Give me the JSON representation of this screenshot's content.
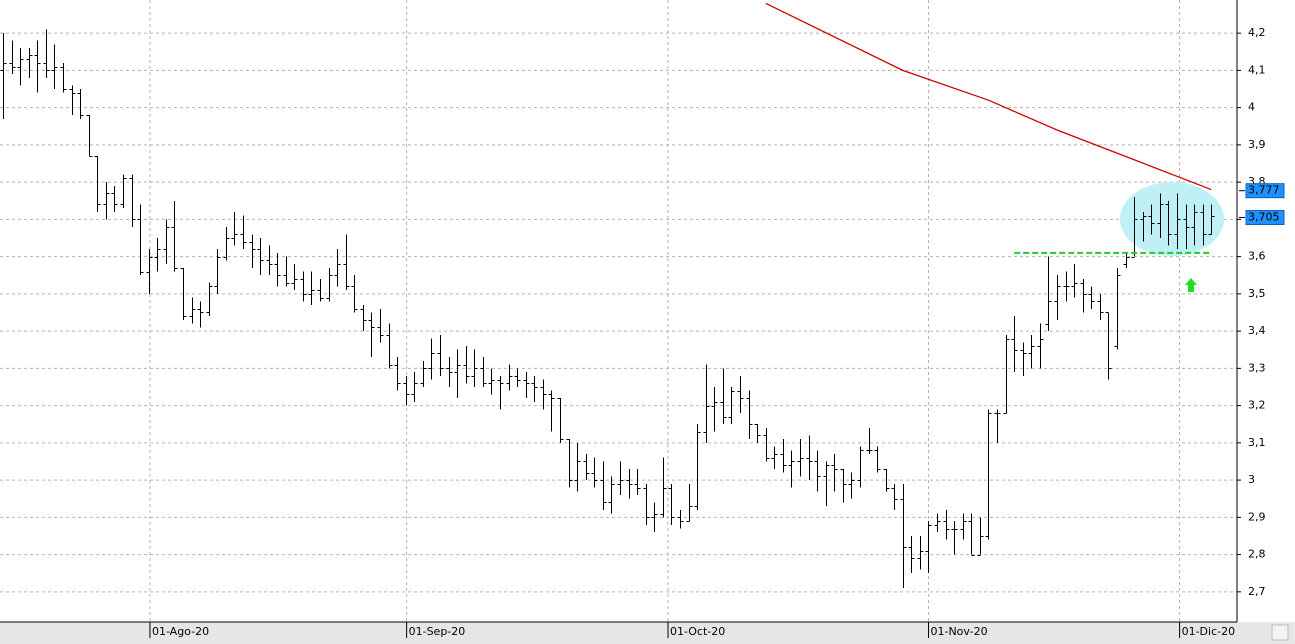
{
  "chart_data": {
    "type": "ohlc",
    "ohlc": [
      [
        4.1,
        4.2,
        3.97,
        4.12
      ],
      [
        4.12,
        4.18,
        4.09,
        4.11
      ],
      [
        4.11,
        4.16,
        4.06,
        4.13
      ],
      [
        4.13,
        4.16,
        4.08,
        4.14
      ],
      [
        4.14,
        4.18,
        4.04,
        4.12
      ],
      [
        4.12,
        4.21,
        4.08,
        4.1
      ],
      [
        4.1,
        4.17,
        4.05,
        4.11
      ],
      [
        4.11,
        4.12,
        4.04,
        4.05
      ],
      [
        4.05,
        4.06,
        3.98,
        4.04
      ],
      [
        4.04,
        4.05,
        3.97,
        3.98
      ],
      [
        3.98,
        3.98,
        3.87,
        3.87
      ],
      [
        3.87,
        3.87,
        3.72,
        3.74
      ],
      [
        3.74,
        3.8,
        3.7,
        3.77
      ],
      [
        3.77,
        3.79,
        3.72,
        3.74
      ],
      [
        3.74,
        3.82,
        3.73,
        3.81
      ],
      [
        3.81,
        3.82,
        3.68,
        3.7
      ],
      [
        3.7,
        3.74,
        3.55,
        3.56
      ],
      [
        3.56,
        3.62,
        3.5,
        3.6
      ],
      [
        3.6,
        3.65,
        3.56,
        3.62
      ],
      [
        3.62,
        3.7,
        3.58,
        3.68
      ],
      [
        3.68,
        3.75,
        3.56,
        3.57
      ],
      [
        3.57,
        3.57,
        3.43,
        3.44
      ],
      [
        3.44,
        3.49,
        3.42,
        3.46
      ],
      [
        3.46,
        3.48,
        3.41,
        3.45
      ],
      [
        3.45,
        3.53,
        3.44,
        3.52
      ],
      [
        3.52,
        3.62,
        3.5,
        3.6
      ],
      [
        3.6,
        3.68,
        3.59,
        3.65
      ],
      [
        3.65,
        3.72,
        3.63,
        3.66
      ],
      [
        3.66,
        3.71,
        3.62,
        3.64
      ],
      [
        3.64,
        3.66,
        3.57,
        3.62
      ],
      [
        3.62,
        3.65,
        3.55,
        3.59
      ],
      [
        3.59,
        3.63,
        3.55,
        3.58
      ],
      [
        3.58,
        3.61,
        3.52,
        3.55
      ],
      [
        3.55,
        3.6,
        3.52,
        3.53
      ],
      [
        3.53,
        3.58,
        3.51,
        3.54
      ],
      [
        3.54,
        3.56,
        3.48,
        3.5
      ],
      [
        3.5,
        3.56,
        3.47,
        3.51
      ],
      [
        3.51,
        3.54,
        3.48,
        3.49
      ],
      [
        3.49,
        3.57,
        3.48,
        3.55
      ],
      [
        3.55,
        3.62,
        3.52,
        3.58
      ],
      [
        3.58,
        3.66,
        3.51,
        3.52
      ],
      [
        3.52,
        3.55,
        3.45,
        3.46
      ],
      [
        3.46,
        3.47,
        3.4,
        3.43
      ],
      [
        3.43,
        3.45,
        3.33,
        3.41
      ],
      [
        3.41,
        3.46,
        3.37,
        3.39
      ],
      [
        3.39,
        3.42,
        3.3,
        3.31
      ],
      [
        3.31,
        3.33,
        3.24,
        3.26
      ],
      [
        3.26,
        3.28,
        3.2,
        3.23
      ],
      [
        3.23,
        3.29,
        3.21,
        3.26
      ],
      [
        3.26,
        3.32,
        3.25,
        3.3
      ],
      [
        3.3,
        3.38,
        3.27,
        3.34
      ],
      [
        3.34,
        3.39,
        3.28,
        3.3
      ],
      [
        3.3,
        3.33,
        3.25,
        3.29
      ],
      [
        3.29,
        3.35,
        3.22,
        3.31
      ],
      [
        3.31,
        3.36,
        3.26,
        3.28
      ],
      [
        3.28,
        3.35,
        3.25,
        3.3
      ],
      [
        3.3,
        3.33,
        3.25,
        3.26
      ],
      [
        3.26,
        3.3,
        3.23,
        3.27
      ],
      [
        3.27,
        3.28,
        3.19,
        3.26
      ],
      [
        3.26,
        3.31,
        3.24,
        3.28
      ],
      [
        3.28,
        3.3,
        3.25,
        3.27
      ],
      [
        3.27,
        3.29,
        3.22,
        3.26
      ],
      [
        3.26,
        3.28,
        3.21,
        3.25
      ],
      [
        3.25,
        3.27,
        3.19,
        3.23
      ],
      [
        3.23,
        3.24,
        3.13,
        3.22
      ],
      [
        3.22,
        3.22,
        3.1,
        3.11
      ],
      [
        3.11,
        3.11,
        2.98,
        3.0
      ],
      [
        3.0,
        3.1,
        2.97,
        3.05
      ],
      [
        3.05,
        3.07,
        3.0,
        3.02
      ],
      [
        3.02,
        3.06,
        2.98,
        3.0
      ],
      [
        3.0,
        3.05,
        2.92,
        2.94
      ],
      [
        2.94,
        3.01,
        2.91,
        2.99
      ],
      [
        2.99,
        3.05,
        2.96,
        3.0
      ],
      [
        3.0,
        3.03,
        2.95,
        2.99
      ],
      [
        2.99,
        3.03,
        2.96,
        2.98
      ],
      [
        2.98,
        2.99,
        2.88,
        2.9
      ],
      [
        2.9,
        2.94,
        2.86,
        2.91
      ],
      [
        2.91,
        3.06,
        2.9,
        2.98
      ],
      [
        2.98,
        2.99,
        2.88,
        2.9
      ],
      [
        2.9,
        2.92,
        2.87,
        2.89
      ],
      [
        2.89,
        2.99,
        2.89,
        2.93
      ],
      [
        2.93,
        3.15,
        2.92,
        3.13
      ],
      [
        3.13,
        3.31,
        3.1,
        3.2
      ],
      [
        3.2,
        3.25,
        3.13,
        3.21
      ],
      [
        3.21,
        3.3,
        3.15,
        3.17
      ],
      [
        3.17,
        3.25,
        3.15,
        3.24
      ],
      [
        3.24,
        3.28,
        3.18,
        3.22
      ],
      [
        3.22,
        3.24,
        3.11,
        3.15
      ],
      [
        3.15,
        3.15,
        3.1,
        3.12
      ],
      [
        3.12,
        3.14,
        3.05,
        3.06
      ],
      [
        3.06,
        3.09,
        3.03,
        3.07
      ],
      [
        3.07,
        3.11,
        3.02,
        3.04
      ],
      [
        3.04,
        3.08,
        2.98,
        3.05
      ],
      [
        3.05,
        3.11,
        3.01,
        3.06
      ],
      [
        3.06,
        3.12,
        3.0,
        3.05
      ],
      [
        3.05,
        3.08,
        2.97,
        3.01
      ],
      [
        3.01,
        3.05,
        2.93,
        3.04
      ],
      [
        3.04,
        3.07,
        2.97,
        3.03
      ],
      [
        3.03,
        3.03,
        2.94,
        2.99
      ],
      [
        2.99,
        3.02,
        2.95,
        3.0
      ],
      [
        3.0,
        3.09,
        2.98,
        3.08
      ],
      [
        3.08,
        3.14,
        3.07,
        3.08
      ],
      [
        3.08,
        3.09,
        3.02,
        3.03
      ],
      [
        3.03,
        3.03,
        2.97,
        2.98
      ],
      [
        2.98,
        2.99,
        2.92,
        2.95
      ],
      [
        2.95,
        2.99,
        2.71,
        2.82
      ],
      [
        2.82,
        2.85,
        2.75,
        2.79
      ],
      [
        2.79,
        2.85,
        2.76,
        2.81
      ],
      [
        2.81,
        2.89,
        2.75,
        2.88
      ],
      [
        2.88,
        2.91,
        2.86,
        2.89
      ],
      [
        2.89,
        2.92,
        2.84,
        2.87
      ],
      [
        2.87,
        2.89,
        2.8,
        2.87
      ],
      [
        2.87,
        2.91,
        2.84,
        2.89
      ],
      [
        2.89,
        2.91,
        2.8,
        2.8
      ],
      [
        2.8,
        2.9,
        2.8,
        2.85
      ],
      [
        2.85,
        3.19,
        2.84,
        3.18
      ],
      [
        3.18,
        3.19,
        3.1,
        3.18
      ],
      [
        3.18,
        3.39,
        3.18,
        3.38
      ],
      [
        3.38,
        3.44,
        3.29,
        3.35
      ],
      [
        3.35,
        3.37,
        3.28,
        3.34
      ],
      [
        3.34,
        3.39,
        3.3,
        3.36
      ],
      [
        3.36,
        3.42,
        3.3,
        3.38
      ],
      [
        3.42,
        3.6,
        3.4,
        3.48
      ],
      [
        3.48,
        3.55,
        3.43,
        3.52
      ],
      [
        3.52,
        3.56,
        3.48,
        3.52
      ],
      [
        3.52,
        3.58,
        3.49,
        3.53
      ],
      [
        3.53,
        3.54,
        3.45,
        3.5
      ],
      [
        3.5,
        3.52,
        3.46,
        3.48
      ],
      [
        3.48,
        3.5,
        3.43,
        3.45
      ],
      [
        3.45,
        3.45,
        3.27,
        3.3
      ],
      [
        3.36,
        3.57,
        3.35,
        3.55
      ],
      [
        3.58,
        3.61,
        3.57,
        3.6
      ],
      [
        3.6,
        3.76,
        3.6,
        3.7
      ],
      [
        3.7,
        3.72,
        3.64,
        3.71
      ],
      [
        3.71,
        3.74,
        3.66,
        3.69
      ],
      [
        3.69,
        3.77,
        3.65,
        3.74
      ],
      [
        3.74,
        3.75,
        3.63,
        3.66
      ],
      [
        3.66,
        3.77,
        3.62,
        3.7
      ],
      [
        3.7,
        3.74,
        3.62,
        3.68
      ],
      [
        3.68,
        3.74,
        3.63,
        3.72
      ],
      [
        3.72,
        3.74,
        3.63,
        3.66
      ],
      [
        3.66,
        3.74,
        3.66,
        3.71
      ]
    ],
    "moving_average": {
      "color": "#d00000",
      "x": [
        89,
        105,
        115,
        123,
        132,
        141
      ],
      "values": [
        4.28,
        4.1,
        4.02,
        3.94,
        3.86,
        3.78
      ]
    },
    "support": {
      "color": "#22cc22",
      "x": [
        118,
        141
      ],
      "values": [
        3.61,
        3.61
      ]
    },
    "price_labels": [
      {
        "value": 3.777,
        "label": "3,777"
      },
      {
        "value": 3.705,
        "label": "3,705"
      }
    ],
    "xlim": [
      -0.35,
      144
    ],
    "xticks": [
      {
        "value": 17.15,
        "label": "01-Ago-20"
      },
      {
        "value": 47.1,
        "label": "01-Sep-20"
      },
      {
        "value": 77.6,
        "label": "01-Oct-20"
      },
      {
        "value": 108,
        "label": "01-Nov-20"
      },
      {
        "value": 137.3,
        "label": "01-Dic-20"
      }
    ],
    "ylim": [
      2.619,
      4.289
    ],
    "yticks": [
      {
        "value": 4.2,
        "label": "4,2"
      },
      {
        "value": 4.1,
        "label": "4,1"
      },
      4,
      {
        "value": 3.9,
        "label": "3,9"
      },
      {
        "value": 3.8,
        "label": "3,8"
      },
      {
        "value": 3.7,
        "label": "3,7"
      },
      {
        "value": 3.6,
        "label": "3,6"
      },
      {
        "value": 3.5,
        "label": "3,5"
      },
      {
        "value": 3.4,
        "label": "3,4"
      },
      {
        "value": 3.3,
        "label": "3,3"
      },
      {
        "value": 3.2,
        "label": "3,2"
      },
      {
        "value": 3.1,
        "label": "3,1"
      },
      3,
      {
        "value": 2.9,
        "label": "2,9"
      },
      {
        "value": 2.8,
        "label": "2,8"
      },
      {
        "value": 2.7,
        "label": "2,7"
      }
    ],
    "grid": true
  }
}
